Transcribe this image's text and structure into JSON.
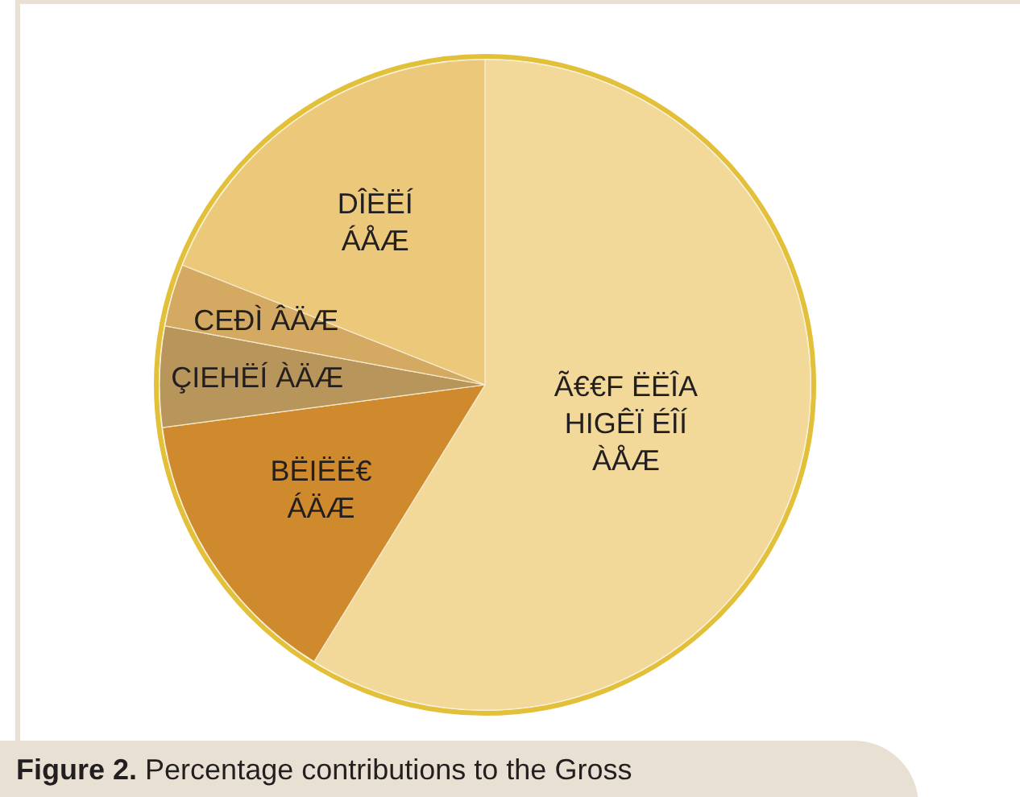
{
  "chart_data": {
    "type": "pie",
    "title": "Figure 2. Percentage contributions to the Gross",
    "categories": [
      "Ã€€F ËËÎA\nHIGÊÏ ÉÎÍ\nÀÅÆ",
      "BËIËË€\nÁÄÆ",
      "ÇIEHËÍ ÀÄÆ",
      "CEÐÌ ÂÄÆ",
      "DÎÈËÍ\nÁÅÆ"
    ],
    "values": [
      58.8,
      14.1,
      5.0,
      3.1,
      19.0
    ],
    "colors": [
      "#f2d99a",
      "#cf8a2e",
      "#b8955a",
      "#d4aa62",
      "#ecc97a"
    ]
  }
}
